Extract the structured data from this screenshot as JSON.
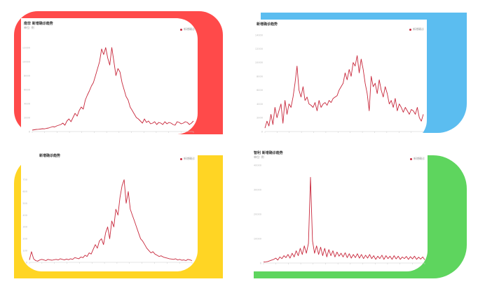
{
  "colors": {
    "line": "#c8283c",
    "axis": "#cccccc",
    "tick_text": "#bbbbbb",
    "deco": [
      "#ff4a4a",
      "#5bbdf0",
      "#ffd524",
      "#5ed55e"
    ]
  },
  "chart_data": [
    {
      "type": "line",
      "title": "南非 新增确诊趋势",
      "unit": "单位: 例",
      "legend": "新增确诊",
      "ylim": [
        0,
        14000
      ],
      "yticks": [
        0,
        2000,
        4000,
        6000,
        8000,
        10000,
        12000
      ],
      "series": [
        {
          "name": "新增确诊",
          "values": [
            200,
            250,
            300,
            320,
            350,
            400,
            380,
            450,
            500,
            600,
            700,
            650,
            800,
            900,
            1000,
            1200,
            900,
            1500,
            1800,
            1400,
            2000,
            2600,
            2200,
            3000,
            3500,
            3200,
            4500,
            5200,
            5800,
            6500,
            7000,
            8000,
            9000,
            10000,
            11800,
            11000,
            12000,
            10500,
            9500,
            12000,
            10000,
            8000,
            9000,
            8500,
            7000,
            6000,
            5000,
            4500,
            3500,
            3000,
            2500,
            2000,
            1800,
            1500,
            1200,
            1800,
            1300,
            1500,
            1100,
            1200,
            1400,
            1000,
            1300,
            1200,
            1000,
            1400,
            1100,
            1300,
            1200,
            1000,
            900,
            1400,
            1300,
            1100,
            1200,
            1400,
            1300,
            1000,
            1200,
            1500
          ]
        }
      ]
    },
    {
      "type": "line",
      "title": "新增确诊趋势",
      "unit": "",
      "legend": "新增确诊",
      "ylim": [
        0,
        14000
      ],
      "yticks": [
        0,
        2000,
        4000,
        6000,
        8000,
        10000,
        12000,
        14000
      ],
      "series": [
        {
          "name": "新增确诊",
          "values": [
            500,
            1500,
            800,
            2500,
            1000,
            3500,
            2000,
            3000,
            4000,
            1200,
            4500,
            2500,
            4000,
            3500,
            5000,
            7000,
            9500,
            6000,
            5000,
            6500,
            4500,
            5000,
            4000,
            3800,
            3500,
            4200,
            3000,
            4500,
            3500,
            4000,
            4200,
            3800,
            4500,
            4200,
            4800,
            5000,
            5200,
            6000,
            6500,
            7000,
            8500,
            7500,
            9000,
            8000,
            10000,
            9500,
            11000,
            8500,
            10500,
            9000,
            7000,
            5500,
            3000,
            8000,
            6500,
            7000,
            5500,
            7500,
            6000,
            5000,
            6500,
            5500,
            4000,
            4500,
            3500,
            4800,
            3000,
            4000,
            3500,
            2800,
            3500,
            3000,
            2500,
            3200,
            3000,
            2500,
            3500,
            2000,
            1500,
            2500
          ]
        }
      ]
    },
    {
      "type": "line",
      "title": "新增确诊趋势",
      "unit": "",
      "legend": "新增确诊",
      "ylim": [
        0,
        800
      ],
      "yticks": [
        0,
        100,
        200,
        300,
        400,
        500,
        600,
        700
      ],
      "series": [
        {
          "name": "新增确诊",
          "values": [
            20,
            90,
            30,
            15,
            10,
            20,
            25,
            20,
            15,
            25,
            20,
            18,
            22,
            25,
            20,
            30,
            25,
            20,
            28,
            22,
            30,
            25,
            40,
            35,
            30,
            45,
            40,
            60,
            50,
            80,
            70,
            110,
            150,
            120,
            180,
            200,
            150,
            250,
            300,
            200,
            350,
            300,
            450,
            400,
            550,
            650,
            700,
            500,
            600,
            450,
            400,
            350,
            300,
            250,
            200,
            180,
            150,
            120,
            100,
            80,
            90,
            70,
            60,
            50,
            55,
            45,
            40,
            35,
            30,
            28,
            25,
            30,
            20,
            25,
            18,
            20,
            15,
            25,
            20,
            15
          ]
        }
      ]
    },
    {
      "type": "line",
      "title": "智利 新增确诊趋势",
      "unit": "单位: 例",
      "legend": "新增确诊",
      "ylim": [
        0,
        40000
      ],
      "yticks": [
        0,
        10000,
        20000,
        30000,
        40000
      ],
      "series": [
        {
          "name": "新增确诊",
          "values": [
            400,
            500,
            600,
            900,
            1200,
            1500,
            2000,
            1200,
            2500,
            1800,
            3000,
            2200,
            3500,
            2000,
            4000,
            2500,
            5000,
            3000,
            6000,
            3500,
            7000,
            4000,
            8000,
            35000,
            9000,
            4000,
            7000,
            3500,
            6500,
            3000,
            6000,
            2500,
            5500,
            3000,
            5000,
            2500,
            4500,
            2800,
            4000,
            2500,
            4200,
            2200,
            3800,
            2000,
            3500,
            2200,
            3800,
            2000,
            3500,
            1800,
            3200,
            2000,
            3500,
            1800,
            3000,
            1500,
            2800,
            1800,
            3200,
            1500,
            3000,
            1800,
            2800,
            1500,
            3000,
            1700,
            2800,
            1500,
            2500,
            1800,
            2700,
            1500,
            2600,
            1700,
            2800,
            1500,
            2400,
            1600,
            2500,
            1300
          ]
        }
      ]
    }
  ]
}
